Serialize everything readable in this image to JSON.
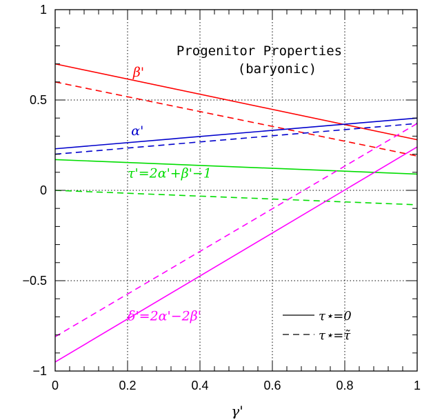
{
  "chart_data": {
    "type": "line",
    "title": "Progenitor Properties",
    "subtitle": "(baryonic)",
    "xlabel": "γ'",
    "ylabel": "",
    "xlim": [
      0,
      1
    ],
    "ylim": [
      -1,
      1
    ],
    "x_ticks": [
      0,
      0.2,
      0.4,
      0.6,
      0.8,
      1
    ],
    "x_tick_labels": [
      "0",
      "0.2",
      "0.4",
      "0.6",
      "0.8",
      "1"
    ],
    "y_ticks": [
      -1,
      -0.5,
      0,
      0.5,
      1
    ],
    "y_tick_labels": [
      "−1",
      "−0.5",
      "0",
      "0.5",
      "1"
    ],
    "grid": true,
    "series": [
      {
        "name": "β'",
        "color": "#ff0000",
        "style": "solid",
        "x": [
          0,
          1
        ],
        "y": [
          0.7,
          0.28
        ]
      },
      {
        "name": "β'",
        "color": "#ff0000",
        "style": "dashed",
        "x": [
          0,
          1
        ],
        "y": [
          0.6,
          0.19
        ]
      },
      {
        "name": "α'",
        "color": "#0000cc",
        "style": "solid",
        "x": [
          0,
          1
        ],
        "y": [
          0.23,
          0.4
        ]
      },
      {
        "name": "α'",
        "color": "#0000cc",
        "style": "dashed",
        "x": [
          0,
          1
        ],
        "y": [
          0.2,
          0.37
        ]
      },
      {
        "name": "τ'=2α'+β'−1",
        "color": "#00dd00",
        "style": "solid",
        "x": [
          0,
          1
        ],
        "y": [
          0.17,
          0.09
        ]
      },
      {
        "name": "τ'=2α'+β'−1",
        "color": "#00dd00",
        "style": "dashed",
        "x": [
          0,
          1
        ],
        "y": [
          0.0,
          -0.08
        ]
      },
      {
        "name": "δ'=2α'−2β'",
        "color": "#ff00ff",
        "style": "solid",
        "x": [
          0,
          1
        ],
        "y": [
          -0.95,
          0.24
        ]
      },
      {
        "name": "δ'=2α'−2β'",
        "color": "#ff00ff",
        "style": "dashed",
        "x": [
          0,
          1
        ],
        "y": [
          -0.81,
          0.37
        ]
      }
    ],
    "annotations": [
      {
        "text": "β'",
        "color": "#ff0000",
        "x": 0.215,
        "y": 0.63
      },
      {
        "text": "α'",
        "color": "#0000cc",
        "x": 0.21,
        "y": 0.305
      },
      {
        "text": "τ'=2α'+β'−1",
        "color": "#00dd00",
        "x": 0.2,
        "y": 0.07
      },
      {
        "text": "δ'=2α'−2β'",
        "color": "#ff00ff",
        "x": 0.2,
        "y": -0.72
      }
    ],
    "legend": {
      "placement": "bottom-right",
      "entries": [
        {
          "label": "τ⋆=0",
          "style": "solid"
        },
        {
          "label": "τ⋆=τ̃",
          "style": "dashed"
        }
      ]
    }
  }
}
